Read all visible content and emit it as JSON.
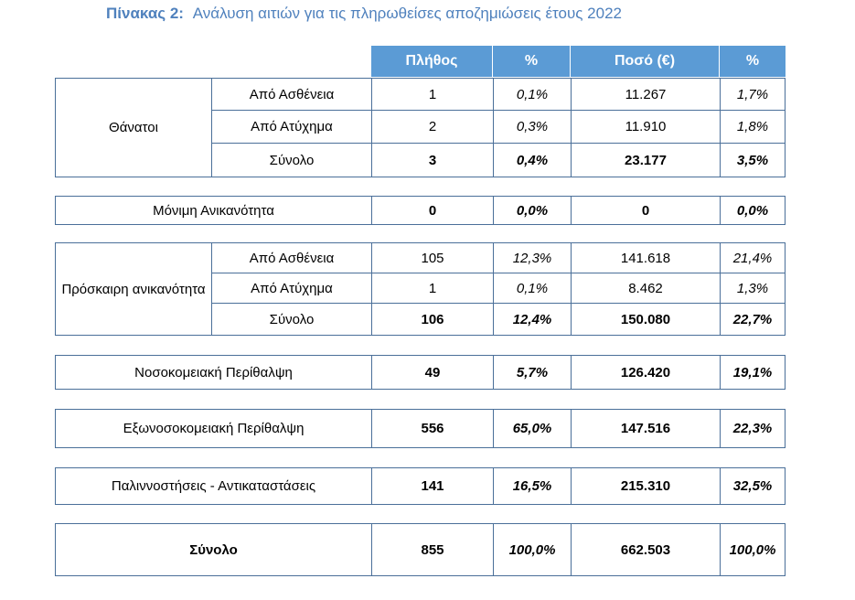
{
  "caption": {
    "label": "Πίνακας 2:",
    "title": "Ανάλυση αιτιών για τις πληρωθείσες αποζημιώσεις έτους 2022"
  },
  "header": {
    "count": "Πλήθος",
    "pct1": "%",
    "amount": "Ποσό (€)",
    "pct2": "%"
  },
  "groups": {
    "deaths": {
      "label": "Θάνατοι",
      "rows": [
        {
          "label": "Από Ασθένεια",
          "count": "1",
          "pct": "0,1%",
          "amount": "11.267",
          "apct": "1,7%"
        },
        {
          "label": "Από Ατύχημα",
          "count": "2",
          "pct": "0,3%",
          "amount": "11.910",
          "apct": "1,8%"
        },
        {
          "label": "Σύνολο",
          "count": "3",
          "pct": "0,4%",
          "amount": "23.177",
          "apct": "3,5%"
        }
      ]
    },
    "permanent": {
      "label": "Μόνιμη  Ανικανότητα",
      "count": "0",
      "pct": "0,0%",
      "amount": "0",
      "apct": "0,0%"
    },
    "temporary": {
      "label": "Πρόσκαιρη ανικανότητα",
      "rows": [
        {
          "label": "Από Ασθένεια",
          "count": "105",
          "pct": "12,3%",
          "amount": "141.618",
          "apct": "21,4%"
        },
        {
          "label": "Από Ατύχημα",
          "count": "1",
          "pct": "0,1%",
          "amount": "8.462",
          "apct": "1,3%"
        },
        {
          "label": "Σύνολο",
          "count": "106",
          "pct": "12,4%",
          "amount": "150.080",
          "apct": "22,7%"
        }
      ]
    },
    "hospital": {
      "label": "Νοσοκομειακή Περίθαλψη",
      "count": "49",
      "pct": "5,7%",
      "amount": "126.420",
      "apct": "19,1%"
    },
    "outpatient": {
      "label": "Εξωνοσοκομειακή  Περίθαλψη",
      "count": "556",
      "pct": "65,0%",
      "amount": "147.516",
      "apct": "22,3%"
    },
    "repatriation": {
      "label": "Παλιννοστήσεις  -  Αντικαταστάσεις",
      "count": "141",
      "pct": "16,5%",
      "amount": "215.310",
      "apct": "32,5%"
    },
    "total": {
      "label": "Σύνολο",
      "count": "855",
      "pct": "100,0%",
      "amount": "662.503",
      "apct": "100,0%"
    }
  }
}
